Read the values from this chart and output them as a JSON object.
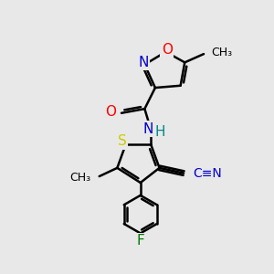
{
  "bg_color": "#e8e8e8",
  "bond_color": "#000000",
  "bond_width": 1.8,
  "atom_colors": {
    "N": "#0000cc",
    "O": "#ff0000",
    "S": "#cccc00",
    "F": "#007700",
    "H": "#008888",
    "CN_label": "#0000cc"
  },
  "font_size_atom": 11,
  "font_size_small": 9,
  "figsize": [
    3.0,
    3.0
  ],
  "dpi": 100,
  "xlim": [
    0,
    10
  ],
  "ylim": [
    0,
    10
  ]
}
